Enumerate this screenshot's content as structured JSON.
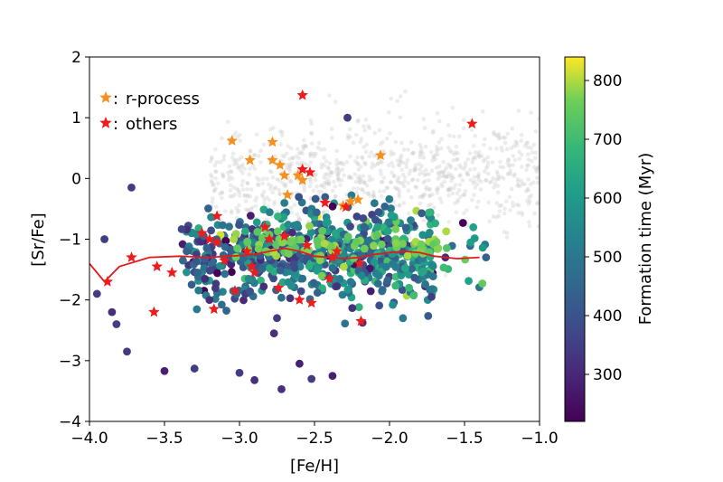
{
  "chart_data": {
    "type": "scatter",
    "xlabel": "[Fe/H]",
    "ylabel": "[Sr/Fe]",
    "xlim": [
      -4.0,
      -1.0
    ],
    "ylim": [
      -4,
      2
    ],
    "xticks": [
      -4.0,
      -3.5,
      -3.0,
      -2.5,
      -2.0,
      -1.5,
      -1.0
    ],
    "xtick_labels": [
      "−4.0",
      "−3.5",
      "−3.0",
      "−2.5",
      "−2.0",
      "−1.5",
      "−1.0"
    ],
    "yticks": [
      2,
      1,
      0,
      -1,
      -2,
      -3,
      -4
    ],
    "ytick_labels": [
      "2",
      "1",
      "0",
      "−1",
      "−2",
      "−3",
      "−4"
    ],
    "grid": false,
    "legend_placement": "top-left",
    "colorbar": {
      "label": "Formation time (Myr)",
      "range": [
        220,
        840
      ],
      "ticks": [
        800,
        700,
        600,
        500,
        400,
        300
      ],
      "tick_labels": [
        "800",
        "700",
        "600",
        "500",
        "400",
        "300"
      ],
      "colormap": "viridis"
    },
    "series": [
      {
        "name": "r-process",
        "marker": "star",
        "color": "#f5901e",
        "points": [
          [
            -3.05,
            0.62
          ],
          [
            -2.78,
            0.6
          ],
          [
            -2.93,
            0.3
          ],
          [
            -2.78,
            0.3
          ],
          [
            -2.73,
            0.22
          ],
          [
            -2.7,
            0.05
          ],
          [
            -2.61,
            0.05
          ],
          [
            -2.58,
            -0.03
          ],
          [
            -2.68,
            -0.27
          ],
          [
            -2.06,
            0.38
          ],
          [
            -2.26,
            -0.38
          ],
          [
            -2.21,
            -0.35
          ],
          [
            -2.31,
            -0.45
          ]
        ]
      },
      {
        "name": "others",
        "marker": "star",
        "color": "#ee1c1c",
        "points": [
          [
            -2.58,
            1.37
          ],
          [
            -1.45,
            0.9
          ],
          [
            -2.58,
            0.15
          ],
          [
            -2.53,
            0.1
          ],
          [
            -2.43,
            -0.4
          ],
          [
            -2.29,
            -0.47
          ],
          [
            -3.15,
            -0.62
          ],
          [
            -3.25,
            -0.9
          ],
          [
            -3.2,
            -1.0
          ],
          [
            -3.15,
            -1.05
          ],
          [
            -2.95,
            -1.2
          ],
          [
            -2.8,
            -1.0
          ],
          [
            -2.7,
            -0.95
          ],
          [
            -2.55,
            -1.1
          ],
          [
            -2.35,
            -1.2
          ],
          [
            -2.2,
            -1.4
          ],
          [
            -2.38,
            -1.3
          ],
          [
            -3.72,
            -1.3
          ],
          [
            -3.88,
            -1.7
          ],
          [
            -3.45,
            -1.55
          ],
          [
            -3.1,
            -1.35
          ],
          [
            -2.9,
            -1.55
          ],
          [
            -3.03,
            -1.85
          ],
          [
            -2.6,
            -2.0
          ],
          [
            -2.52,
            -2.05
          ],
          [
            -3.17,
            -2.15
          ],
          [
            -3.57,
            -2.2
          ],
          [
            -2.19,
            -2.35
          ],
          [
            -2.74,
            -1.8
          ],
          [
            -2.4,
            -1.65
          ],
          [
            -2.92,
            -1.45
          ],
          [
            -3.55,
            -1.45
          ],
          [
            -2.83,
            -0.8
          ]
        ]
      }
    ],
    "median_line": {
      "color": "#e31a1c",
      "points": [
        [
          -4.0,
          -1.4
        ],
        [
          -3.9,
          -1.7
        ],
        [
          -3.8,
          -1.45
        ],
        [
          -3.6,
          -1.3
        ],
        [
          -3.4,
          -1.28
        ],
        [
          -3.2,
          -1.3
        ],
        [
          -3.0,
          -1.27
        ],
        [
          -2.9,
          -1.25
        ],
        [
          -2.8,
          -1.2
        ],
        [
          -2.7,
          -1.15
        ],
        [
          -2.6,
          -1.2
        ],
        [
          -2.5,
          -1.28
        ],
        [
          -2.4,
          -1.3
        ],
        [
          -2.3,
          -1.32
        ],
        [
          -2.2,
          -1.3
        ],
        [
          -2.1,
          -1.25
        ],
        [
          -2.0,
          -1.22
        ],
        [
          -1.9,
          -1.2
        ],
        [
          -1.8,
          -1.22
        ],
        [
          -1.7,
          -1.28
        ],
        [
          -1.55,
          -1.32
        ],
        [
          -1.4,
          -1.3
        ]
      ]
    },
    "background_points_color": "#c8c8c8",
    "colored_points_range": {
      "x": [
        -4.0,
        -1.38
      ],
      "y": [
        -3.5,
        1.0
      ]
    }
  }
}
